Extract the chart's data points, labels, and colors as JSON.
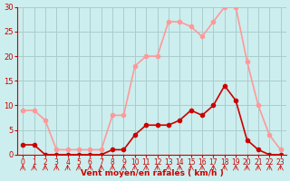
{
  "hours": [
    0,
    1,
    2,
    3,
    4,
    5,
    6,
    7,
    8,
    9,
    10,
    11,
    12,
    13,
    14,
    15,
    16,
    17,
    18,
    19,
    20,
    21,
    22,
    23
  ],
  "avg_wind": [
    2,
    2,
    0,
    0,
    0,
    0,
    0,
    0,
    1,
    1,
    4,
    6,
    6,
    6,
    7,
    9,
    8,
    10,
    14,
    11,
    3,
    1,
    0,
    0
  ],
  "gust_wind": [
    9,
    9,
    7,
    1,
    1,
    1,
    1,
    1,
    8,
    8,
    18,
    20,
    20,
    27,
    27,
    26,
    24,
    27,
    30,
    30,
    19,
    10,
    4,
    1
  ],
  "xlabel": "Vent moyen/en rafales ( km/h )",
  "ylim": [
    0,
    30
  ],
  "xlim": [
    0,
    23
  ],
  "yticks": [
    0,
    5,
    10,
    15,
    20,
    25,
    30
  ],
  "xticks": [
    0,
    1,
    2,
    3,
    4,
    5,
    6,
    7,
    8,
    9,
    10,
    11,
    12,
    13,
    14,
    15,
    16,
    17,
    18,
    19,
    20,
    21,
    22,
    23
  ],
  "avg_color": "#cc0000",
  "gust_color": "#ff9999",
  "bg_color": "#cceeee",
  "grid_color": "#aacccc",
  "axis_color": "#cc0000",
  "text_color": "#cc0000",
  "marker_size": 3,
  "line_width": 1.2
}
